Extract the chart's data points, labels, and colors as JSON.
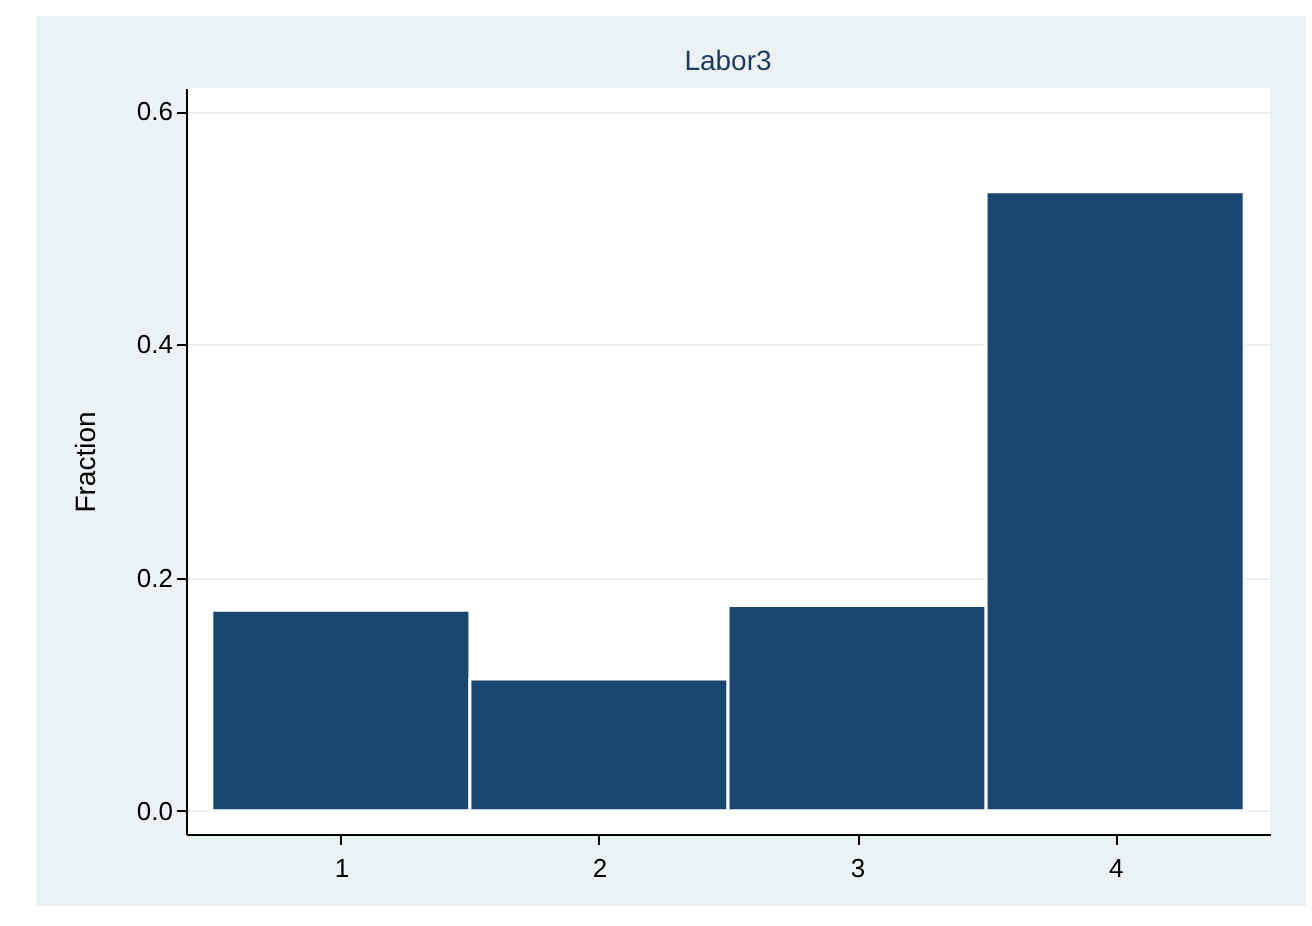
{
  "chart_data": {
    "type": "histogram",
    "title": "Labor3",
    "ylabel": "Fraction",
    "bins": [
      0.5,
      1.5,
      2.5,
      3.5,
      4.5
    ],
    "values": [
      0.172,
      0.113,
      0.176,
      0.531
    ],
    "color": "#1a476f",
    "xlim": [
      0.4,
      4.6
    ],
    "xticks": [
      1,
      2,
      3,
      4
    ],
    "ylim": [
      -0.02,
      0.62
    ],
    "yticks": [
      {
        "value": 0,
        "label": "0.0"
      },
      0.2,
      0.4,
      0.6
    ],
    "grid": "y"
  }
}
